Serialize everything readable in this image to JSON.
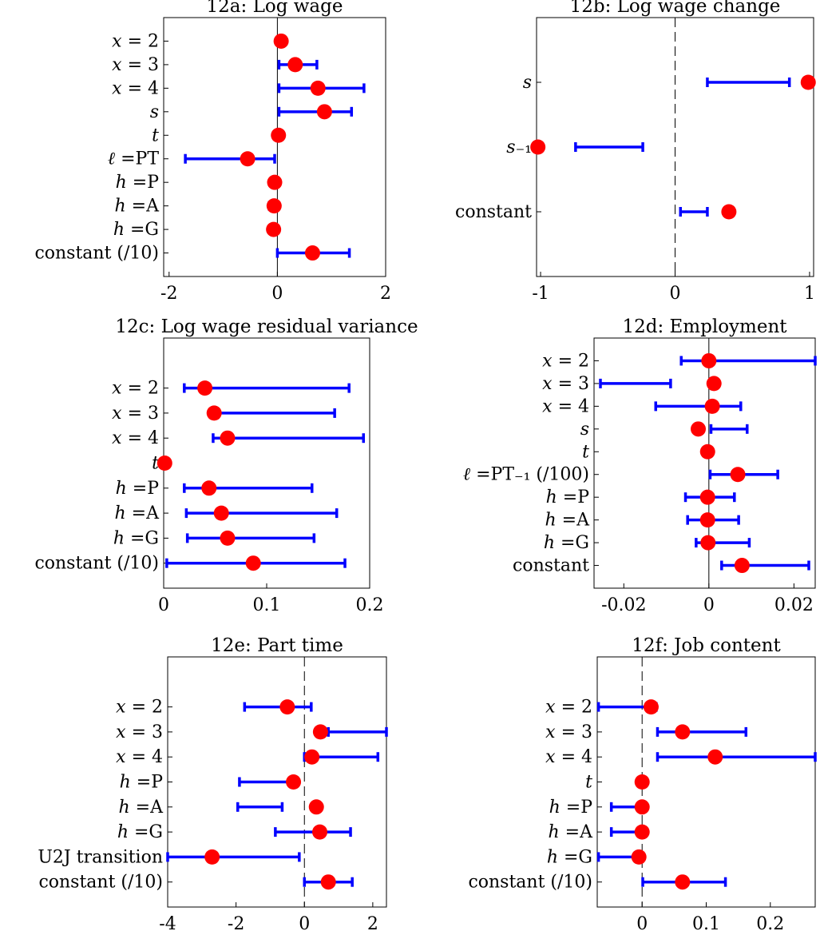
{
  "colors": {
    "estimate": "#ff0000",
    "interval": "#0000ff",
    "axes": "#000000"
  },
  "chart_data": [
    {
      "id": "12a",
      "type": "scatter",
      "title": "12a: Log wage",
      "xlim": [
        -2.1,
        2.0
      ],
      "xticks": [
        "-2",
        "0",
        "2"
      ],
      "xtick_values": [
        -2,
        0,
        2
      ],
      "zero_line": "solid",
      "rows": [
        {
          "label": "x = 2",
          "point": 0.07,
          "ci": [
            0.03,
            0.14
          ]
        },
        {
          "label": "x = 3",
          "point": 0.33,
          "ci": [
            0.03,
            0.73
          ]
        },
        {
          "label": "x = 4",
          "point": 0.75,
          "ci": [
            0.03,
            1.6
          ]
        },
        {
          "label": "s",
          "point": 0.87,
          "ci": [
            0.03,
            1.37
          ]
        },
        {
          "label": "t",
          "point": 0.02,
          "ci": [
            0.0,
            0.04
          ]
        },
        {
          "label": "ℓ =PT",
          "point": -0.55,
          "ci": [
            -1.7,
            -0.05
          ]
        },
        {
          "label": "h =P",
          "point": -0.05,
          "ci": [
            -0.13,
            -0.02
          ]
        },
        {
          "label": "h =A",
          "point": -0.06,
          "ci": [
            -0.15,
            -0.03
          ]
        },
        {
          "label": "h =G",
          "point": -0.07,
          "ci": [
            -0.14,
            -0.03
          ]
        },
        {
          "label": "constant (/10)",
          "point": 0.65,
          "ci": [
            0.0,
            1.33
          ]
        }
      ],
      "ylim_rows": [
        0,
        11
      ]
    },
    {
      "id": "12b",
      "type": "scatter",
      "title": "12b: Log wage change",
      "xlim": [
        -1.03,
        1.03
      ],
      "xticks": [
        "-1",
        "0",
        "1"
      ],
      "xtick_values": [
        -1,
        0,
        1
      ],
      "zero_line": "dashed",
      "rows": [
        {
          "label": "s",
          "point": 0.99,
          "ci": [
            0.24,
            0.85
          ]
        },
        {
          "label": "s₋₁",
          "point": -1.02,
          "ci": [
            -0.74,
            -0.24
          ]
        },
        {
          "label": "constant",
          "point": 0.4,
          "ci": [
            0.04,
            0.24
          ]
        }
      ],
      "ylim_rows": [
        0,
        4
      ]
    },
    {
      "id": "12c",
      "type": "scatter",
      "title": "12c: Log wage residual variance",
      "xlim": [
        0,
        0.2
      ],
      "xticks": [
        "0",
        "0.1",
        "0.2"
      ],
      "xtick_values": [
        0,
        0.1,
        0.2
      ],
      "zero_line": "none",
      "rows": [
        {
          "label": "x = 2",
          "point": 0.04,
          "ci": [
            0.02,
            0.18
          ]
        },
        {
          "label": "x = 3",
          "point": 0.049,
          "ci": [
            0.048,
            0.166
          ]
        },
        {
          "label": "x = 4",
          "point": 0.062,
          "ci": [
            0.048,
            0.194
          ]
        },
        {
          "label": "t",
          "point": 0.001,
          "ci": [
            0.0,
            0.002
          ]
        },
        {
          "label": "h =P",
          "point": 0.044,
          "ci": [
            0.02,
            0.144
          ]
        },
        {
          "label": "h =A",
          "point": 0.056,
          "ci": [
            0.022,
            0.168
          ]
        },
        {
          "label": "h =G",
          "point": 0.062,
          "ci": [
            0.023,
            0.146
          ]
        },
        {
          "label": "constant (/10)",
          "point": 0.087,
          "ci": [
            0.003,
            0.176
          ]
        }
      ],
      "ylim_rows": [
        -1,
        9
      ]
    },
    {
      "id": "12d",
      "type": "scatter",
      "title": "12d: Employment",
      "xlim": [
        -0.027,
        0.025
      ],
      "xticks": [
        "-0.02",
        "0",
        "0.02"
      ],
      "xtick_values": [
        -0.02,
        0,
        0.02
      ],
      "zero_line": "solid",
      "rows": [
        {
          "label": "x = 2",
          "point": 0.0,
          "ci": [
            -0.0065,
            0.025
          ]
        },
        {
          "label": "x = 3",
          "point": 0.0012,
          "ci": [
            -0.0255,
            -0.009
          ]
        },
        {
          "label": "x = 4",
          "point": 0.0008,
          "ci": [
            -0.0125,
            0.0075
          ]
        },
        {
          "label": "s",
          "point": -0.0025,
          "ci": [
            0.0005,
            0.009
          ]
        },
        {
          "label": "t",
          "point": -0.0003,
          "ci": [
            0.0,
            0.0006
          ]
        },
        {
          "label": "ℓ =PT₋₁ (/100)",
          "point": 0.0068,
          "ci": [
            0.0003,
            0.0162
          ]
        },
        {
          "label": "h =P",
          "point": -0.0003,
          "ci": [
            -0.0055,
            0.006
          ]
        },
        {
          "label": "h =A",
          "point": -0.0003,
          "ci": [
            -0.005,
            0.007
          ]
        },
        {
          "label": "h =G",
          "point": -0.0002,
          "ci": [
            -0.003,
            0.0095
          ]
        },
        {
          "label": "constant",
          "point": 0.0078,
          "ci": [
            0.003,
            0.0235
          ]
        }
      ],
      "ylim_rows": [
        0,
        11
      ]
    },
    {
      "id": "12e",
      "type": "scatter",
      "title": "12e: Part time",
      "xlim": [
        -4,
        2.4
      ],
      "xticks": [
        "-4",
        "-2",
        "0",
        "2"
      ],
      "xtick_values": [
        -4,
        -2,
        0,
        2
      ],
      "zero_line": "dashed",
      "rows": [
        {
          "label": "x = 2",
          "point": -0.5,
          "ci": [
            -1.75,
            0.2
          ]
        },
        {
          "label": "x = 3",
          "point": 0.47,
          "ci": [
            0.7,
            2.4
          ]
        },
        {
          "label": "x = 4",
          "point": 0.22,
          "ci": [
            0.0,
            2.15
          ]
        },
        {
          "label": "h =P",
          "point": -0.32,
          "ci": [
            -1.9,
            -0.35
          ]
        },
        {
          "label": "h =A",
          "point": 0.35,
          "ci": [
            -1.95,
            -0.65
          ]
        },
        {
          "label": "h =G",
          "point": 0.45,
          "ci": [
            -0.85,
            1.35
          ]
        },
        {
          "label": "U2J transition",
          "point": -2.7,
          "ci": [
            -4.0,
            -0.15
          ]
        },
        {
          "label": "constant (/10)",
          "point": 0.7,
          "ci": [
            0.0,
            1.4
          ]
        }
      ],
      "ylim_rows": [
        -1,
        9
      ]
    },
    {
      "id": "12f",
      "type": "scatter",
      "title": "12f: Job content",
      "xlim": [
        -0.07,
        0.27
      ],
      "xticks": [
        "0",
        "0.1",
        "0.2"
      ],
      "xtick_values": [
        0,
        0.1,
        0.2
      ],
      "zero_line": "dashed",
      "rows": [
        {
          "label": "x = 2",
          "point": 0.014,
          "ci": [
            -0.068,
            0.022
          ]
        },
        {
          "label": "x = 3",
          "point": 0.063,
          "ci": [
            0.024,
            0.162
          ]
        },
        {
          "label": "x = 4",
          "point": 0.114,
          "ci": [
            0.024,
            0.27
          ]
        },
        {
          "label": "t",
          "point": 0.0,
          "ci": [
            -0.001,
            0.001
          ]
        },
        {
          "label": "h =P",
          "point": 0.0,
          "ci": [
            -0.048,
            -0.005
          ]
        },
        {
          "label": "h =A",
          "point": 0.0,
          "ci": [
            -0.048,
            -0.004
          ]
        },
        {
          "label": "h =G",
          "point": -0.005,
          "ci": [
            -0.068,
            -0.01
          ]
        },
        {
          "label": "constant (/10)",
          "point": 0.063,
          "ci": [
            0.001,
            0.13
          ]
        }
      ],
      "ylim_rows": [
        -1,
        9
      ]
    }
  ]
}
